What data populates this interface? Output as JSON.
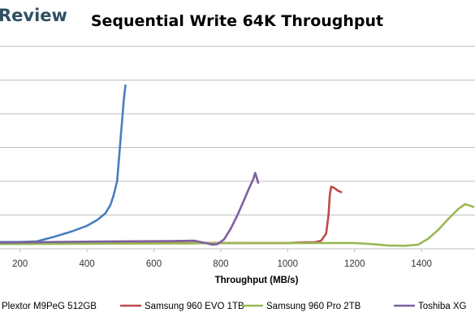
{
  "brand": {
    "text": "Review",
    "color": "#2f4f63"
  },
  "chart_data": {
    "type": "line",
    "title": "Sequential Write 64K Throughput",
    "xlabel": "Throughput (MB/s)",
    "ylabel": "",
    "xlim": [
      140,
      1560
    ],
    "ylim": [
      0,
      6
    ],
    "x_ticks": [
      200,
      400,
      600,
      800,
      1000,
      1200,
      1400
    ],
    "x_tick_labels": [
      "200",
      "400",
      "600",
      "800",
      "1000",
      "1200",
      "1400"
    ],
    "y_gridlines": [
      1,
      2,
      3,
      4,
      5,
      6
    ],
    "grid": "horizontal",
    "legend_position": "bottom",
    "series": [
      {
        "name": "Plextor M9PeG 512GB",
        "color": "#4a7ebb",
        "points": [
          [
            140,
            0.2
          ],
          [
            200,
            0.2
          ],
          [
            250,
            0.22
          ],
          [
            300,
            0.35
          ],
          [
            350,
            0.5
          ],
          [
            400,
            0.68
          ],
          [
            430,
            0.85
          ],
          [
            455,
            1.05
          ],
          [
            470,
            1.3
          ],
          [
            480,
            1.6
          ],
          [
            490,
            2.0
          ],
          [
            495,
            2.6
          ],
          [
            500,
            3.2
          ],
          [
            505,
            3.8
          ],
          [
            510,
            4.4
          ],
          [
            515,
            4.84
          ]
        ]
      },
      {
        "name": "Samsung 960 EVO 1TB",
        "color": "#be4b48",
        "points": [
          [
            140,
            0.16
          ],
          [
            300,
            0.17
          ],
          [
            500,
            0.17
          ],
          [
            700,
            0.17
          ],
          [
            900,
            0.17
          ],
          [
            1000,
            0.17
          ],
          [
            1050,
            0.19
          ],
          [
            1080,
            0.19
          ],
          [
            1100,
            0.24
          ],
          [
            1115,
            0.45
          ],
          [
            1122,
            1.0
          ],
          [
            1126,
            1.6
          ],
          [
            1130,
            1.84
          ],
          [
            1140,
            1.8
          ],
          [
            1150,
            1.72
          ],
          [
            1160,
            1.68
          ]
        ]
      },
      {
        "name": "Samsung 960 Pro 2TB",
        "color": "#98b954",
        "points": [
          [
            140,
            0.14
          ],
          [
            400,
            0.15
          ],
          [
            700,
            0.16
          ],
          [
            900,
            0.17
          ],
          [
            1100,
            0.17
          ],
          [
            1200,
            0.17
          ],
          [
            1250,
            0.14
          ],
          [
            1300,
            0.1
          ],
          [
            1350,
            0.09
          ],
          [
            1390,
            0.12
          ],
          [
            1420,
            0.3
          ],
          [
            1450,
            0.56
          ],
          [
            1480,
            0.88
          ],
          [
            1510,
            1.18
          ],
          [
            1530,
            1.32
          ],
          [
            1545,
            1.28
          ],
          [
            1555,
            1.24
          ]
        ]
      },
      {
        "name": "Toshiba XG",
        "color": "#7d60a0",
        "points": [
          [
            140,
            0.18
          ],
          [
            300,
            0.2
          ],
          [
            500,
            0.22
          ],
          [
            650,
            0.23
          ],
          [
            720,
            0.24
          ],
          [
            750,
            0.18
          ],
          [
            775,
            0.12
          ],
          [
            790,
            0.14
          ],
          [
            810,
            0.28
          ],
          [
            830,
            0.6
          ],
          [
            850,
            1.0
          ],
          [
            870,
            1.45
          ],
          [
            885,
            1.8
          ],
          [
            897,
            2.06
          ],
          [
            903,
            2.25
          ],
          [
            905,
            2.18
          ],
          [
            912,
            1.96
          ]
        ]
      }
    ]
  }
}
